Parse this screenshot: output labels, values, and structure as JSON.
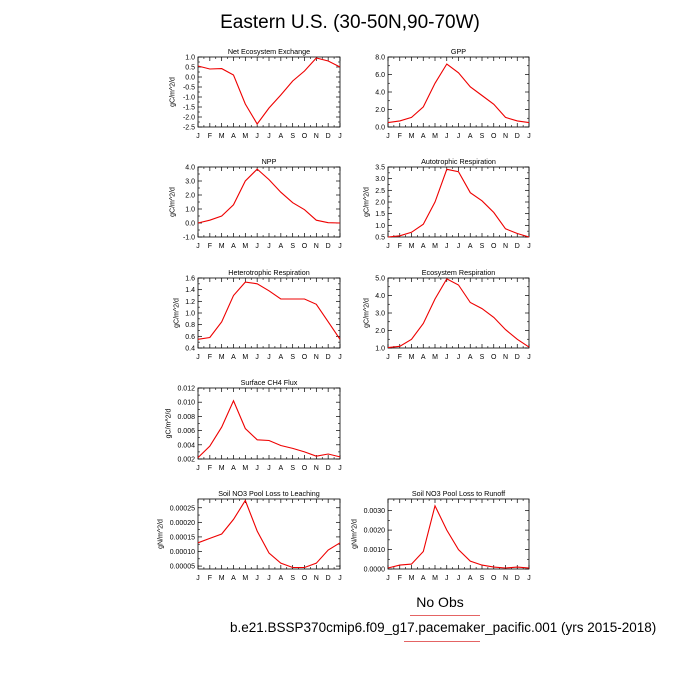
{
  "title": "Eastern U.S. (30-50N,90-70W)",
  "legend": {
    "label": "No Obs",
    "color": "#e46464"
  },
  "caption": "b.e21.BSSP370cmip6.f09_g17.pacemaker_pacific.001 (yrs 2015-2018)",
  "chart_data": [
    {
      "type": "line",
      "title": "Net Ecosystem Exchange",
      "ylabel": "gC/m^2/d",
      "x": [
        "J",
        "F",
        "M",
        "A",
        "M",
        "J",
        "J",
        "A",
        "S",
        "O",
        "N",
        "D",
        "J"
      ],
      "ylim": [
        -2.5,
        1.0
      ],
      "yticks": [
        -2.5,
        -2.0,
        -1.5,
        -1.0,
        -0.5,
        0.0,
        0.5,
        1.0
      ],
      "ytick_labels": [
        "-2.5",
        "-2.0",
        "-1.5",
        "-1.0",
        "-0.5",
        "0.0",
        "0.5",
        "1.0"
      ],
      "series": [
        {
          "color": "#ee0000",
          "values": [
            0.55,
            0.4,
            0.42,
            0.1,
            -1.35,
            -2.35,
            -1.55,
            -0.9,
            -0.2,
            0.3,
            0.95,
            0.8,
            0.5
          ]
        }
      ]
    },
    {
      "type": "line",
      "title": "GPP",
      "ylabel": "",
      "x": [
        "J",
        "F",
        "M",
        "A",
        "M",
        "J",
        "J",
        "A",
        "S",
        "O",
        "N",
        "D",
        "J"
      ],
      "ylim": [
        0.0,
        8.0
      ],
      "yticks": [
        0,
        2,
        4,
        6,
        8
      ],
      "ytick_labels": [
        "0.0",
        "2.0",
        "4.0",
        "6.0",
        "8.0"
      ],
      "series": [
        {
          "color": "#ee0000",
          "values": [
            0.5,
            0.7,
            1.1,
            2.3,
            5.0,
            7.2,
            6.2,
            4.6,
            3.6,
            2.6,
            1.1,
            0.7,
            0.5
          ]
        }
      ]
    },
    {
      "type": "line",
      "title": "NPP",
      "ylabel": "gC/m^2/d",
      "x": [
        "J",
        "F",
        "M",
        "A",
        "M",
        "J",
        "J",
        "A",
        "S",
        "O",
        "N",
        "D",
        "J"
      ],
      "ylim": [
        -1.0,
        4.0
      ],
      "yticks": [
        -1,
        0,
        1,
        2,
        3,
        4
      ],
      "ytick_labels": [
        "-1.0",
        "0.0",
        "1.0",
        "2.0",
        "3.0",
        "4.0"
      ],
      "series": [
        {
          "color": "#ee0000",
          "values": [
            0.0,
            0.2,
            0.5,
            1.3,
            3.0,
            3.85,
            3.1,
            2.2,
            1.45,
            0.95,
            0.2,
            0.02,
            0.0
          ]
        }
      ]
    },
    {
      "type": "line",
      "title": "Autotrophic Respiration",
      "ylabel": "gC/m^2/d",
      "x": [
        "J",
        "F",
        "M",
        "A",
        "M",
        "J",
        "J",
        "A",
        "S",
        "O",
        "N",
        "D",
        "J"
      ],
      "ylim": [
        0.5,
        3.5
      ],
      "yticks": [
        0.5,
        1.0,
        1.5,
        2.0,
        2.5,
        3.0,
        3.5
      ],
      "ytick_labels": [
        "0.5",
        "1.0",
        "1.5",
        "2.0",
        "2.5",
        "3.0",
        "3.5"
      ],
      "series": [
        {
          "color": "#ee0000",
          "values": [
            0.5,
            0.55,
            0.7,
            1.05,
            2.0,
            3.4,
            3.3,
            2.4,
            2.05,
            1.55,
            0.85,
            0.65,
            0.5
          ]
        }
      ]
    },
    {
      "type": "line",
      "title": "Heterotrophic Respiration",
      "ylabel": "gC/m^2/d",
      "x": [
        "J",
        "F",
        "M",
        "A",
        "M",
        "J",
        "J",
        "A",
        "S",
        "O",
        "N",
        "D",
        "J"
      ],
      "ylim": [
        0.4,
        1.6
      ],
      "yticks": [
        0.4,
        0.6,
        0.8,
        1.0,
        1.2,
        1.4,
        1.6
      ],
      "ytick_labels": [
        "0.4",
        "0.6",
        "0.8",
        "1.0",
        "1.2",
        "1.4",
        "1.6"
      ],
      "series": [
        {
          "color": "#ee0000",
          "values": [
            0.55,
            0.58,
            0.85,
            1.3,
            1.53,
            1.5,
            1.38,
            1.24,
            1.24,
            1.24,
            1.15,
            0.85,
            0.55
          ]
        }
      ]
    },
    {
      "type": "line",
      "title": "Ecosystem Respiration",
      "ylabel": "gC/m^2/d",
      "x": [
        "J",
        "F",
        "M",
        "A",
        "M",
        "J",
        "J",
        "A",
        "S",
        "O",
        "N",
        "D",
        "J"
      ],
      "ylim": [
        1.0,
        5.0
      ],
      "yticks": [
        1,
        2,
        3,
        4,
        5
      ],
      "ytick_labels": [
        "1.0",
        "2.0",
        "3.0",
        "4.0",
        "5.0"
      ],
      "series": [
        {
          "color": "#ee0000",
          "values": [
            1.02,
            1.1,
            1.5,
            2.4,
            3.8,
            4.95,
            4.6,
            3.6,
            3.25,
            2.75,
            2.05,
            1.5,
            1.05
          ]
        }
      ]
    },
    {
      "type": "line",
      "title": "Surface CH4 Flux",
      "ylabel": "gC/m^2/d",
      "x": [
        "J",
        "F",
        "M",
        "A",
        "M",
        "J",
        "J",
        "A",
        "S",
        "O",
        "N",
        "D",
        "J"
      ],
      "ylim": [
        0.002,
        0.012
      ],
      "yticks": [
        0.002,
        0.004,
        0.006,
        0.008,
        0.01,
        0.012
      ],
      "ytick_labels": [
        "0.002",
        "0.004",
        "0.006",
        "0.008",
        "0.010",
        "0.012"
      ],
      "series": [
        {
          "color": "#ee0000",
          "values": [
            0.0022,
            0.0038,
            0.0065,
            0.0102,
            0.0063,
            0.0047,
            0.0046,
            0.0039,
            0.0035,
            0.003,
            0.0024,
            0.0027,
            0.0023
          ]
        }
      ]
    },
    {
      "type": "line",
      "title": "Soil NO3 Pool Loss to Leaching",
      "ylabel": "gN/m^2/d",
      "x": [
        "J",
        "F",
        "M",
        "A",
        "M",
        "J",
        "J",
        "A",
        "S",
        "O",
        "N",
        "D",
        "J"
      ],
      "ylim": [
        4e-05,
        0.00028
      ],
      "yticks": [
        5e-05,
        0.0001,
        0.00015,
        0.0002,
        0.00025
      ],
      "ytick_labels": [
        "0.00005",
        "0.00010",
        "0.00015",
        "0.00020",
        "0.00025"
      ],
      "series": [
        {
          "color": "#ee0000",
          "values": [
            0.00013,
            0.000145,
            0.00016,
            0.00021,
            0.000275,
            0.00017,
            9.5e-05,
            6e-05,
            4.5e-05,
            4.5e-05,
            6e-05,
            0.000105,
            0.00013
          ]
        }
      ]
    },
    {
      "type": "line",
      "title": "Soil NO3 Pool Loss to Runoff",
      "ylabel": "gN/m^2/d",
      "x": [
        "J",
        "F",
        "M",
        "A",
        "M",
        "J",
        "J",
        "A",
        "S",
        "O",
        "N",
        "D",
        "J"
      ],
      "ylim": [
        0.0,
        0.0036
      ],
      "yticks": [
        0,
        0.001,
        0.002,
        0.003
      ],
      "ytick_labels": [
        "0.0000",
        "0.0010",
        "0.0020",
        "0.0030"
      ],
      "series": [
        {
          "color": "#ee0000",
          "values": [
            5e-05,
            0.0002,
            0.00025,
            0.0009,
            0.00325,
            0.002,
            0.001,
            0.0004,
            0.0002,
            0.0001,
            5e-05,
            0.0001,
            5e-05
          ]
        }
      ]
    }
  ]
}
